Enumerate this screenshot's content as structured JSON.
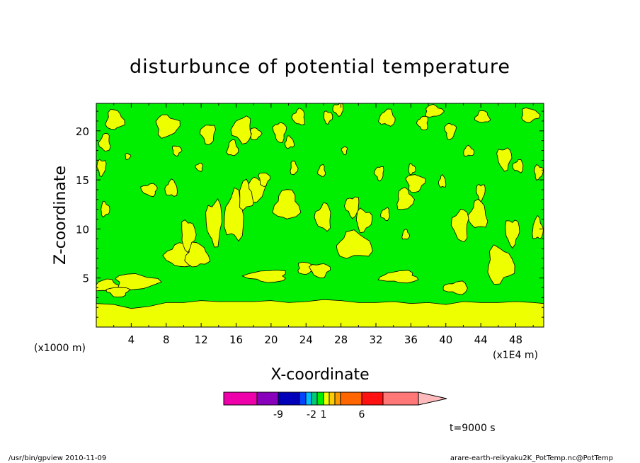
{
  "chart_data": {
    "type": "heatmap",
    "title": "disturbunce of potential temperature",
    "xlabel": "X-coordinate",
    "ylabel": "Z-coordinate",
    "x_unit": "(x1E4 m)",
    "y_unit": "(x1000 m)",
    "xlim": [
      0,
      51.2
    ],
    "ylim": [
      0,
      22.8
    ],
    "x_ticks": [
      4,
      8,
      12,
      16,
      20,
      24,
      28,
      32,
      36,
      40,
      44,
      48
    ],
    "y_ticks": [
      5,
      10,
      15,
      20
    ],
    "background_level_color": "#00ee00",
    "low_layer": {
      "color": "#eeff00",
      "profile": [
        [
          0,
          2.4
        ],
        [
          2,
          2.3
        ],
        [
          4,
          1.9
        ],
        [
          6,
          2.1
        ],
        [
          8,
          2.5
        ],
        [
          10,
          2.5
        ],
        [
          12,
          2.7
        ],
        [
          14,
          2.6
        ],
        [
          16,
          2.6
        ],
        [
          18,
          2.6
        ],
        [
          20,
          2.7
        ],
        [
          22,
          2.5
        ],
        [
          24,
          2.6
        ],
        [
          26,
          2.8
        ],
        [
          28,
          2.7
        ],
        [
          30,
          2.5
        ],
        [
          32,
          2.5
        ],
        [
          34,
          2.6
        ],
        [
          36,
          2.4
        ],
        [
          38,
          2.5
        ],
        [
          40,
          2.3
        ],
        [
          42,
          2.6
        ],
        [
          44,
          2.5
        ],
        [
          46,
          2.5
        ],
        [
          48,
          2.6
        ],
        [
          50,
          2.5
        ],
        [
          51.2,
          2.4
        ]
      ]
    },
    "blobs": [
      [
        1.2,
        4.2,
        1.4,
        0.6
      ],
      [
        4.5,
        4.6,
        2.4,
        0.8
      ],
      [
        2.5,
        3.6,
        1.2,
        0.5
      ],
      [
        9.5,
        7.3,
        1.5,
        1.2
      ],
      [
        11.5,
        7.3,
        1.3,
        1.2
      ],
      [
        10.5,
        9.4,
        0.8,
        1.5
      ],
      [
        13.5,
        10.7,
        0.9,
        2.2
      ],
      [
        15.8,
        11.3,
        1.1,
        2.4
      ],
      [
        17.2,
        13.4,
        0.9,
        1.4
      ],
      [
        18.4,
        14.1,
        0.9,
        1.2
      ],
      [
        19.6,
        5.2,
        2.3,
        0.6
      ],
      [
        21.8,
        12.4,
        1.4,
        1.5
      ],
      [
        24.0,
        6.0,
        1.0,
        0.6
      ],
      [
        25.6,
        5.8,
        1.1,
        0.7
      ],
      [
        26.0,
        11.2,
        0.9,
        1.3
      ],
      [
        29.5,
        8.3,
        2.0,
        1.3
      ],
      [
        30.6,
        10.9,
        0.9,
        1.1
      ],
      [
        29.3,
        12.3,
        0.8,
        1.0
      ],
      [
        34.7,
        5.1,
        2.1,
        0.6
      ],
      [
        35.3,
        13.0,
        0.9,
        1.1
      ],
      [
        36.5,
        14.7,
        1.0,
        0.9
      ],
      [
        41.7,
        10.4,
        0.9,
        1.6
      ],
      [
        43.7,
        11.4,
        1.0,
        1.4
      ],
      [
        46.2,
        6.3,
        1.5,
        1.8
      ],
      [
        47.6,
        9.7,
        0.8,
        1.3
      ],
      [
        41.2,
        4.0,
        1.4,
        0.6
      ],
      [
        50.5,
        10.0,
        0.6,
        1.1
      ],
      [
        8.1,
        20.5,
        1.3,
        1.1
      ],
      [
        12.8,
        19.7,
        0.8,
        1.0
      ],
      [
        1.0,
        18.8,
        0.6,
        0.9
      ],
      [
        2.1,
        21.1,
        1.0,
        1.0
      ],
      [
        9.2,
        18.0,
        0.5,
        0.5
      ],
      [
        6.1,
        14.0,
        0.9,
        0.6
      ],
      [
        8.6,
        14.1,
        0.7,
        0.8
      ],
      [
        1.0,
        12.0,
        0.5,
        0.7
      ],
      [
        0.6,
        16.3,
        0.5,
        0.8
      ],
      [
        16.7,
        20.1,
        1.1,
        1.3
      ],
      [
        15.6,
        18.2,
        0.6,
        0.8
      ],
      [
        18.2,
        19.7,
        0.6,
        0.6
      ],
      [
        21.0,
        19.9,
        0.7,
        1.0
      ],
      [
        23.2,
        21.4,
        0.7,
        0.8
      ],
      [
        22.1,
        18.8,
        0.5,
        0.6
      ],
      [
        26.5,
        21.4,
        0.5,
        0.6
      ],
      [
        27.7,
        22.2,
        0.6,
        0.6
      ],
      [
        33.3,
        21.3,
        0.9,
        0.8
      ],
      [
        38.6,
        22.0,
        1.0,
        0.6
      ],
      [
        40.5,
        20.0,
        0.6,
        0.8
      ],
      [
        37.4,
        20.8,
        0.6,
        0.7
      ],
      [
        44.2,
        21.4,
        0.8,
        0.6
      ],
      [
        49.6,
        21.6,
        1.0,
        0.7
      ],
      [
        46.7,
        17.2,
        0.8,
        1.1
      ],
      [
        48.3,
        16.4,
        0.6,
        0.6
      ],
      [
        42.6,
        17.9,
        0.6,
        0.5
      ],
      [
        50.6,
        15.8,
        0.5,
        0.7
      ],
      [
        32.4,
        15.7,
        0.5,
        0.7
      ],
      [
        25.8,
        15.9,
        0.4,
        0.6
      ],
      [
        22.6,
        16.2,
        0.4,
        0.7
      ],
      [
        19.2,
        15.1,
        0.6,
        0.7
      ],
      [
        11.8,
        16.3,
        0.4,
        0.4
      ],
      [
        39.6,
        14.8,
        0.4,
        0.6
      ],
      [
        36.1,
        16.1,
        0.4,
        0.5
      ],
      [
        44.0,
        13.8,
        0.5,
        0.8
      ],
      [
        33.1,
        11.5,
        0.5,
        0.6
      ],
      [
        35.4,
        9.4,
        0.4,
        0.5
      ],
      [
        3.6,
        17.4,
        0.3,
        0.3
      ],
      [
        28.4,
        18.0,
        0.3,
        0.4
      ]
    ],
    "colorbar": {
      "colors": [
        "#ee00aa",
        "#8800bb",
        "#0000bb",
        "#0044ff",
        "#00bbff",
        "#00cc77",
        "#00ee00",
        "#eeff00",
        "#ffcc00",
        "#ff9900",
        "#ff6600",
        "#ff1111",
        "#ff7777",
        "#ffbbbb"
      ],
      "widths": [
        47,
        30,
        30,
        9,
        8,
        8,
        9,
        8,
        8,
        8,
        30,
        30,
        50,
        40
      ],
      "labels": [
        {
          "after": 1,
          "text": "-9"
        },
        {
          "after": 4,
          "text": "-2"
        },
        {
          "after": 6,
          "text": "1"
        },
        {
          "after": 10,
          "text": "6"
        }
      ]
    },
    "time_label": "t=9000 s",
    "footer_left": "/usr/bin/gpview  2010-11-09",
    "footer_right": "arare-earth-reikyaku2K_PotTemp.nc@PotTemp"
  }
}
